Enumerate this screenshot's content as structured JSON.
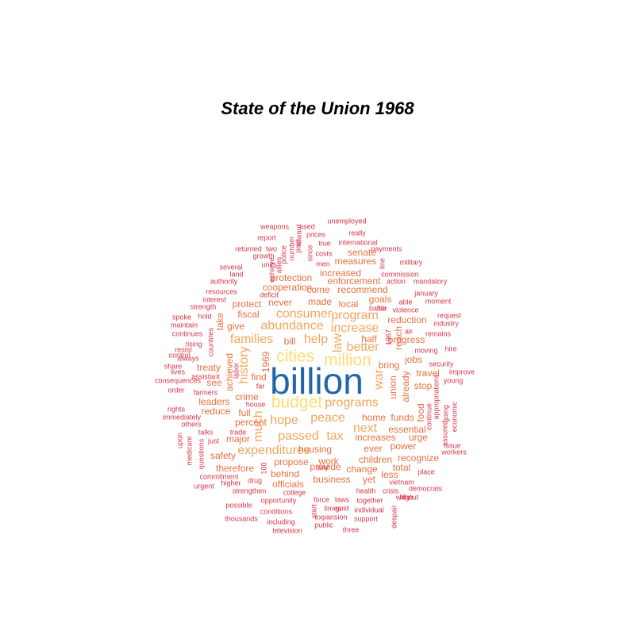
{
  "title": "State of the Union 1968",
  "palette": {
    "t1": "#2166ac",
    "t2": "#fddc75",
    "t3": "#f4a65a",
    "t4": "#e8703f",
    "t5": "#d8364a"
  },
  "words": [
    {
      "text": "billion",
      "tier": 1,
      "vertical": false
    },
    {
      "text": "million",
      "tier": 2,
      "vertical": false
    },
    {
      "text": "cities",
      "tier": 2,
      "vertical": false
    },
    {
      "text": "budget",
      "tier": 2,
      "vertical": false
    },
    {
      "text": "programs",
      "tier": 3,
      "vertical": false
    },
    {
      "text": "peace",
      "tier": 3,
      "vertical": false
    },
    {
      "text": "hope",
      "tier": 3,
      "vertical": false
    },
    {
      "text": "help",
      "tier": 3,
      "vertical": false
    },
    {
      "text": "passed",
      "tier": 3,
      "vertical": false
    },
    {
      "text": "tax",
      "tier": 3,
      "vertical": false
    },
    {
      "text": "program",
      "tier": 3,
      "vertical": false
    },
    {
      "text": "increase",
      "tier": 3,
      "vertical": false
    },
    {
      "text": "better",
      "tier": 3,
      "vertical": false
    },
    {
      "text": "consumer",
      "tier": 3,
      "vertical": false
    },
    {
      "text": "abundance",
      "tier": 3,
      "vertical": false
    },
    {
      "text": "families",
      "tier": 3,
      "vertical": false
    },
    {
      "text": "expenditures",
      "tier": 3,
      "vertical": false
    },
    {
      "text": "war",
      "tier": 3,
      "vertical": true
    },
    {
      "text": "history",
      "tier": 3,
      "vertical": true
    },
    {
      "text": "next",
      "tier": 3,
      "vertical": false
    },
    {
      "text": "law",
      "tier": 3,
      "vertical": true
    },
    {
      "text": "much",
      "tier": 3,
      "vertical": true
    },
    {
      "text": "increases",
      "tier": 4,
      "vertical": false
    },
    {
      "text": "housing",
      "tier": 4,
      "vertical": false
    },
    {
      "text": "home",
      "tier": 4,
      "vertical": false
    },
    {
      "text": "essential",
      "tier": 4,
      "vertical": false
    },
    {
      "text": "percent",
      "tier": 4,
      "vertical": false
    },
    {
      "text": "crime",
      "tier": 4,
      "vertical": false
    },
    {
      "text": "made",
      "tier": 4,
      "vertical": false
    },
    {
      "text": "local",
      "tier": 4,
      "vertical": false
    },
    {
      "text": "never",
      "tier": 4,
      "vertical": false
    },
    {
      "text": "cooperation",
      "tier": 4,
      "vertical": false
    },
    {
      "text": "protection",
      "tier": 4,
      "vertical": false
    },
    {
      "text": "enforcement",
      "tier": 4,
      "vertical": false
    },
    {
      "text": "come",
      "tier": 4,
      "vertical": false
    },
    {
      "text": "recommend",
      "tier": 4,
      "vertical": false
    },
    {
      "text": "goals",
      "tier": 4,
      "vertical": false
    },
    {
      "text": "reduction",
      "tier": 4,
      "vertical": false
    },
    {
      "text": "progress",
      "tier": 4,
      "vertical": false
    },
    {
      "text": "jobs",
      "tier": 4,
      "vertical": false
    },
    {
      "text": "bring",
      "tier": 4,
      "vertical": false
    },
    {
      "text": "travel",
      "tier": 4,
      "vertical": false
    },
    {
      "text": "stop",
      "tier": 4,
      "vertical": false
    },
    {
      "text": "propose",
      "tier": 4,
      "vertical": false
    },
    {
      "text": "work",
      "tier": 4,
      "vertical": false
    },
    {
      "text": "ever",
      "tier": 4,
      "vertical": false
    },
    {
      "text": "power",
      "tier": 4,
      "vertical": false
    },
    {
      "text": "children",
      "tier": 4,
      "vertical": false
    },
    {
      "text": "change",
      "tier": 4,
      "vertical": false
    },
    {
      "text": "therefore",
      "tier": 4,
      "vertical": false
    },
    {
      "text": "behind",
      "tier": 4,
      "vertical": false
    },
    {
      "text": "provide",
      "tier": 4,
      "vertical": false
    },
    {
      "text": "officials",
      "tier": 4,
      "vertical": false
    },
    {
      "text": "business",
      "tier": 4,
      "vertical": false
    },
    {
      "text": "yet",
      "tier": 4,
      "vertical": false
    },
    {
      "text": "major",
      "tier": 4,
      "vertical": false
    },
    {
      "text": "full",
      "tier": 4,
      "vertical": false
    },
    {
      "text": "leaders",
      "tier": 4,
      "vertical": false
    },
    {
      "text": "reduce",
      "tier": 4,
      "vertical": false
    },
    {
      "text": "see",
      "tier": 4,
      "vertical": false
    },
    {
      "text": "treaty",
      "tier": 4,
      "vertical": false
    },
    {
      "text": "give",
      "tier": 4,
      "vertical": false
    },
    {
      "text": "fiscal",
      "tier": 4,
      "vertical": false
    },
    {
      "text": "protect",
      "tier": 4,
      "vertical": false
    },
    {
      "text": "bill",
      "tier": 4,
      "vertical": false
    },
    {
      "text": "find",
      "tier": 4,
      "vertical": false
    },
    {
      "text": "half",
      "tier": 4,
      "vertical": false
    },
    {
      "text": "increased",
      "tier": 4,
      "vertical": false
    },
    {
      "text": "measures",
      "tier": 4,
      "vertical": false
    },
    {
      "text": "senate",
      "tier": 4,
      "vertical": false
    },
    {
      "text": "recognize",
      "tier": 4,
      "vertical": false
    },
    {
      "text": "total",
      "tier": 4,
      "vertical": false
    },
    {
      "text": "less",
      "tier": 4,
      "vertical": false
    },
    {
      "text": "urge",
      "tier": 4,
      "vertical": false
    },
    {
      "text": "funds",
      "tier": 4,
      "vertical": false
    },
    {
      "text": "1969",
      "tier": 4,
      "vertical": true
    },
    {
      "text": "achieved",
      "tier": 4,
      "vertical": true
    },
    {
      "text": "union",
      "tier": 4,
      "vertical": true
    },
    {
      "text": "already",
      "tier": 4,
      "vertical": true
    },
    {
      "text": "food",
      "tier": 4,
      "vertical": true
    },
    {
      "text": "reach",
      "tier": 4,
      "vertical": true
    },
    {
      "text": "take",
      "tier": 4,
      "vertical": true
    },
    {
      "text": "safety",
      "tier": 4,
      "vertical": false
    },
    {
      "text": "weapons",
      "tier": 5,
      "vertical": false
    },
    {
      "text": "report",
      "tier": 5,
      "vertical": false
    },
    {
      "text": "returned",
      "tier": 5,
      "vertical": false
    },
    {
      "text": "two",
      "tier": 5,
      "vertical": false
    },
    {
      "text": "growth",
      "tier": 5,
      "vertical": false
    },
    {
      "text": "units",
      "tier": 5,
      "vertical": false
    },
    {
      "text": "several",
      "tier": 5,
      "vertical": false
    },
    {
      "text": "land",
      "tier": 5,
      "vertical": false
    },
    {
      "text": "authority",
      "tier": 5,
      "vertical": false
    },
    {
      "text": "resources",
      "tier": 5,
      "vertical": false
    },
    {
      "text": "interest",
      "tier": 5,
      "vertical": false
    },
    {
      "text": "strength",
      "tier": 5,
      "vertical": false
    },
    {
      "text": "spoke",
      "tier": 5,
      "vertical": false
    },
    {
      "text": "hold",
      "tier": 5,
      "vertical": false
    },
    {
      "text": "maintain",
      "tier": 5,
      "vertical": false
    },
    {
      "text": "continues",
      "tier": 5,
      "vertical": false
    },
    {
      "text": "rising",
      "tier": 5,
      "vertical": false
    },
    {
      "text": "control",
      "tier": 5,
      "vertical": false
    },
    {
      "text": "resist",
      "tier": 5,
      "vertical": false
    },
    {
      "text": "always",
      "tier": 5,
      "vertical": false
    },
    {
      "text": "share",
      "tier": 5,
      "vertical": false
    },
    {
      "text": "assistant",
      "tier": 5,
      "vertical": false
    },
    {
      "text": "lives",
      "tier": 5,
      "vertical": false
    },
    {
      "text": "consequences",
      "tier": 5,
      "vertical": false
    },
    {
      "text": "order",
      "tier": 5,
      "vertical": false
    },
    {
      "text": "farmers",
      "tier": 5,
      "vertical": false
    },
    {
      "text": "rights",
      "tier": 5,
      "vertical": false
    },
    {
      "text": "immediately",
      "tier": 5,
      "vertical": false
    },
    {
      "text": "others",
      "tier": 5,
      "vertical": false
    },
    {
      "text": "talks",
      "tier": 5,
      "vertical": false
    },
    {
      "text": "just",
      "tier": 5,
      "vertical": false
    },
    {
      "text": "trade",
      "tier": 5,
      "vertical": false
    },
    {
      "text": "house",
      "tier": 5,
      "vertical": false
    },
    {
      "text": "far",
      "tier": 5,
      "vertical": false
    },
    {
      "text": "commitment",
      "tier": 5,
      "vertical": false
    },
    {
      "text": "higher",
      "tier": 5,
      "vertical": false
    },
    {
      "text": "urgent",
      "tier": 5,
      "vertical": false
    },
    {
      "text": "strengthen",
      "tier": 5,
      "vertical": false
    },
    {
      "text": "drug",
      "tier": 5,
      "vertical": false
    },
    {
      "text": "college",
      "tier": 5,
      "vertical": false
    },
    {
      "text": "possible",
      "tier": 5,
      "vertical": false
    },
    {
      "text": "opportunity",
      "tier": 5,
      "vertical": false
    },
    {
      "text": "conditions",
      "tier": 5,
      "vertical": false
    },
    {
      "text": "thousands",
      "tier": 5,
      "vertical": false
    },
    {
      "text": "including",
      "tier": 5,
      "vertical": false
    },
    {
      "text": "television",
      "tier": 5,
      "vertical": false
    },
    {
      "text": "public",
      "tier": 5,
      "vertical": false
    },
    {
      "text": "expansion",
      "tier": 5,
      "vertical": false
    },
    {
      "text": "times",
      "tier": 5,
      "vertical": false
    },
    {
      "text": "gold",
      "tier": 5,
      "vertical": false
    },
    {
      "text": "individual",
      "tier": 5,
      "vertical": false
    },
    {
      "text": "force",
      "tier": 5,
      "vertical": false
    },
    {
      "text": "laws",
      "tier": 5,
      "vertical": false
    },
    {
      "text": "together",
      "tier": 5,
      "vertical": false
    },
    {
      "text": "support",
      "tier": 5,
      "vertical": false
    },
    {
      "text": "three",
      "tier": 5,
      "vertical": false
    },
    {
      "text": "health",
      "tier": 5,
      "vertical": false
    },
    {
      "text": "crisis",
      "tier": 5,
      "vertical": false
    },
    {
      "text": "high",
      "tier": 5,
      "vertical": false
    },
    {
      "text": "place",
      "tier": 5,
      "vertical": false
    },
    {
      "text": "democrats",
      "tier": 5,
      "vertical": false
    },
    {
      "text": "without",
      "tier": 5,
      "vertical": false
    },
    {
      "text": "vietnam",
      "tier": 5,
      "vertical": false
    },
    {
      "text": "pay",
      "tier": 5,
      "vertical": false
    },
    {
      "text": "unemployed",
      "tier": 5,
      "vertical": false
    },
    {
      "text": "really",
      "tier": 5,
      "vertical": false
    },
    {
      "text": "used",
      "tier": 5,
      "vertical": false
    },
    {
      "text": "prices",
      "tier": 5,
      "vertical": false
    },
    {
      "text": "international",
      "tier": 5,
      "vertical": false
    },
    {
      "text": "true",
      "tier": 5,
      "vertical": false
    },
    {
      "text": "payments",
      "tier": 5,
      "vertical": false
    },
    {
      "text": "costs",
      "tier": 5,
      "vertical": false
    },
    {
      "text": "men",
      "tier": 5,
      "vertical": false
    },
    {
      "text": "military",
      "tier": 5,
      "vertical": false
    },
    {
      "text": "commission",
      "tier": 5,
      "vertical": false
    },
    {
      "text": "action",
      "tier": 5,
      "vertical": false
    },
    {
      "text": "mandatory",
      "tier": 5,
      "vertical": false
    },
    {
      "text": "january",
      "tier": 5,
      "vertical": false
    },
    {
      "text": "able",
      "tier": 5,
      "vertical": false
    },
    {
      "text": "moment",
      "tier": 5,
      "vertical": false
    },
    {
      "text": "fair",
      "tier": 5,
      "vertical": false
    },
    {
      "text": "violence",
      "tier": 5,
      "vertical": false
    },
    {
      "text": "battle",
      "tier": 5,
      "vertical": false
    },
    {
      "text": "request",
      "tier": 5,
      "vertical": false
    },
    {
      "text": "industry",
      "tier": 5,
      "vertical": false
    },
    {
      "text": "air",
      "tier": 5,
      "vertical": false
    },
    {
      "text": "remains",
      "tier": 5,
      "vertical": false
    },
    {
      "text": "moving",
      "tier": 5,
      "vertical": false
    },
    {
      "text": "hire",
      "tier": 5,
      "vertical": false
    },
    {
      "text": "security",
      "tier": 5,
      "vertical": false
    },
    {
      "text": "improve",
      "tier": 5,
      "vertical": false
    },
    {
      "text": "young",
      "tier": 5,
      "vertical": false
    },
    {
      "text": "issue",
      "tier": 5,
      "vertical": false
    },
    {
      "text": "workers",
      "tier": 5,
      "vertical": false
    },
    {
      "text": "deficit",
      "tier": 5,
      "vertical": false
    },
    {
      "text": "police",
      "tier": 5,
      "vertical": true
    },
    {
      "text": "number",
      "tier": 5,
      "vertical": true
    },
    {
      "text": "past",
      "tier": 5,
      "vertical": true
    },
    {
      "text": "toward",
      "tier": 5,
      "vertical": true
    },
    {
      "text": "since",
      "tier": 5,
      "vertical": true
    },
    {
      "text": "achieve",
      "tier": 5,
      "vertical": true
    },
    {
      "text": "allies",
      "tier": 5,
      "vertical": true
    },
    {
      "text": "line",
      "tier": 5,
      "vertical": true
    },
    {
      "text": "1967",
      "tier": 5,
      "vertical": true
    },
    {
      "text": "countries",
      "tier": 5,
      "vertical": true
    },
    {
      "text": "labor",
      "tier": 5,
      "vertical": true
    },
    {
      "text": "upon",
      "tier": 5,
      "vertical": true
    },
    {
      "text": "medicare",
      "tier": 5,
      "vertical": true
    },
    {
      "text": "questions",
      "tier": 5,
      "vertical": true
    },
    {
      "text": "100",
      "tier": 5,
      "vertical": true
    },
    {
      "text": "start",
      "tier": 5,
      "vertical": true
    },
    {
      "text": "despair",
      "tier": 5,
      "vertical": true
    },
    {
      "text": "appropriations",
      "tier": 5,
      "vertical": true
    },
    {
      "text": "continue",
      "tier": 5,
      "vertical": true
    },
    {
      "text": "assured",
      "tier": 5,
      "vertical": true
    },
    {
      "text": "going",
      "tier": 5,
      "vertical": true
    },
    {
      "text": "economic",
      "tier": 5,
      "vertical": true
    }
  ]
}
